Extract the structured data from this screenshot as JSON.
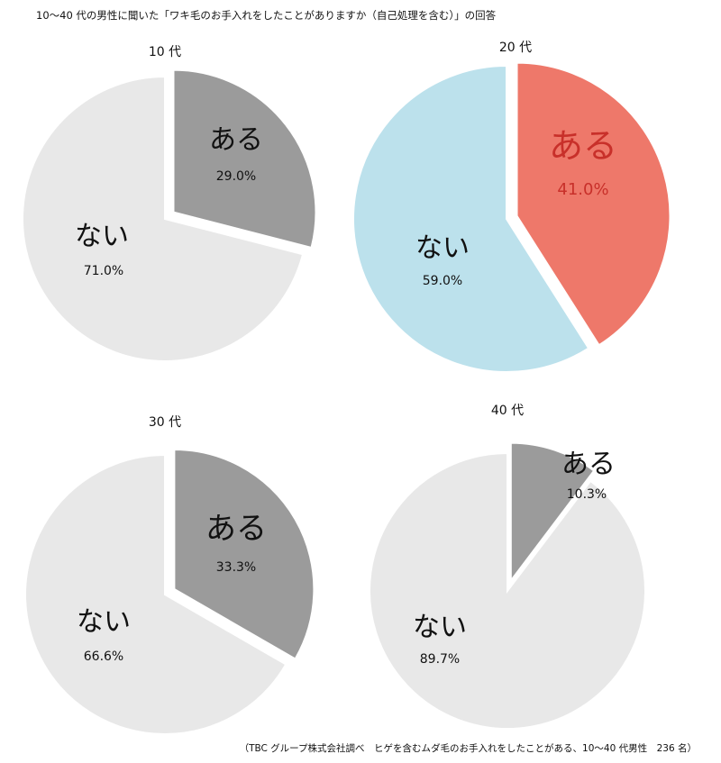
{
  "title": "10〜40 代の男性に聞いた「ワキ毛のお手入れをしたことがありますか（自己処理を含む）」の回答",
  "source": "（TBC グループ株式会社調べ　ヒゲを含むムダ毛のお手入れをしたことがある、10〜40 代男性　236 名）",
  "chart_data": [
    {
      "type": "pie",
      "group_label": "10 代",
      "categories": [
        "ある",
        "ない"
      ],
      "values": [
        29.0,
        71.0
      ],
      "value_labels": [
        "29.0%",
        "71.0%"
      ],
      "colors": [
        "#9b9b9b",
        "#e8e8e8"
      ],
      "label_colors": [
        "#111111",
        "#111111"
      ],
      "exploded": "ある",
      "start": "12 o'clock, clockwise"
    },
    {
      "type": "pie",
      "group_label": "20 代",
      "categories": [
        "ある",
        "ない"
      ],
      "values": [
        41.0,
        59.0
      ],
      "value_labels": [
        "41.0%",
        "59.0%"
      ],
      "colors": [
        "#ee786a",
        "#bce1ec"
      ],
      "label_colors": [
        "#c8302a",
        "#111111"
      ],
      "exploded": "ある",
      "start": "12 o'clock, clockwise"
    },
    {
      "type": "pie",
      "group_label": "30 代",
      "categories": [
        "ある",
        "ない"
      ],
      "values": [
        33.3,
        66.6
      ],
      "value_labels": [
        "33.3%",
        "66.6%"
      ],
      "colors": [
        "#9b9b9b",
        "#e8e8e8"
      ],
      "label_colors": [
        "#111111",
        "#111111"
      ],
      "exploded": "ある",
      "start": "12 o'clock, clockwise"
    },
    {
      "type": "pie",
      "group_label": "40 代",
      "categories": [
        "ある",
        "ない"
      ],
      "values": [
        10.3,
        89.7
      ],
      "value_labels": [
        "10.3%",
        "89.7%"
      ],
      "colors": [
        "#9b9b9b",
        "#e8e8e8"
      ],
      "label_colors": [
        "#111111",
        "#111111"
      ],
      "exploded": "ある",
      "start": "12 o'clock, clockwise"
    }
  ]
}
